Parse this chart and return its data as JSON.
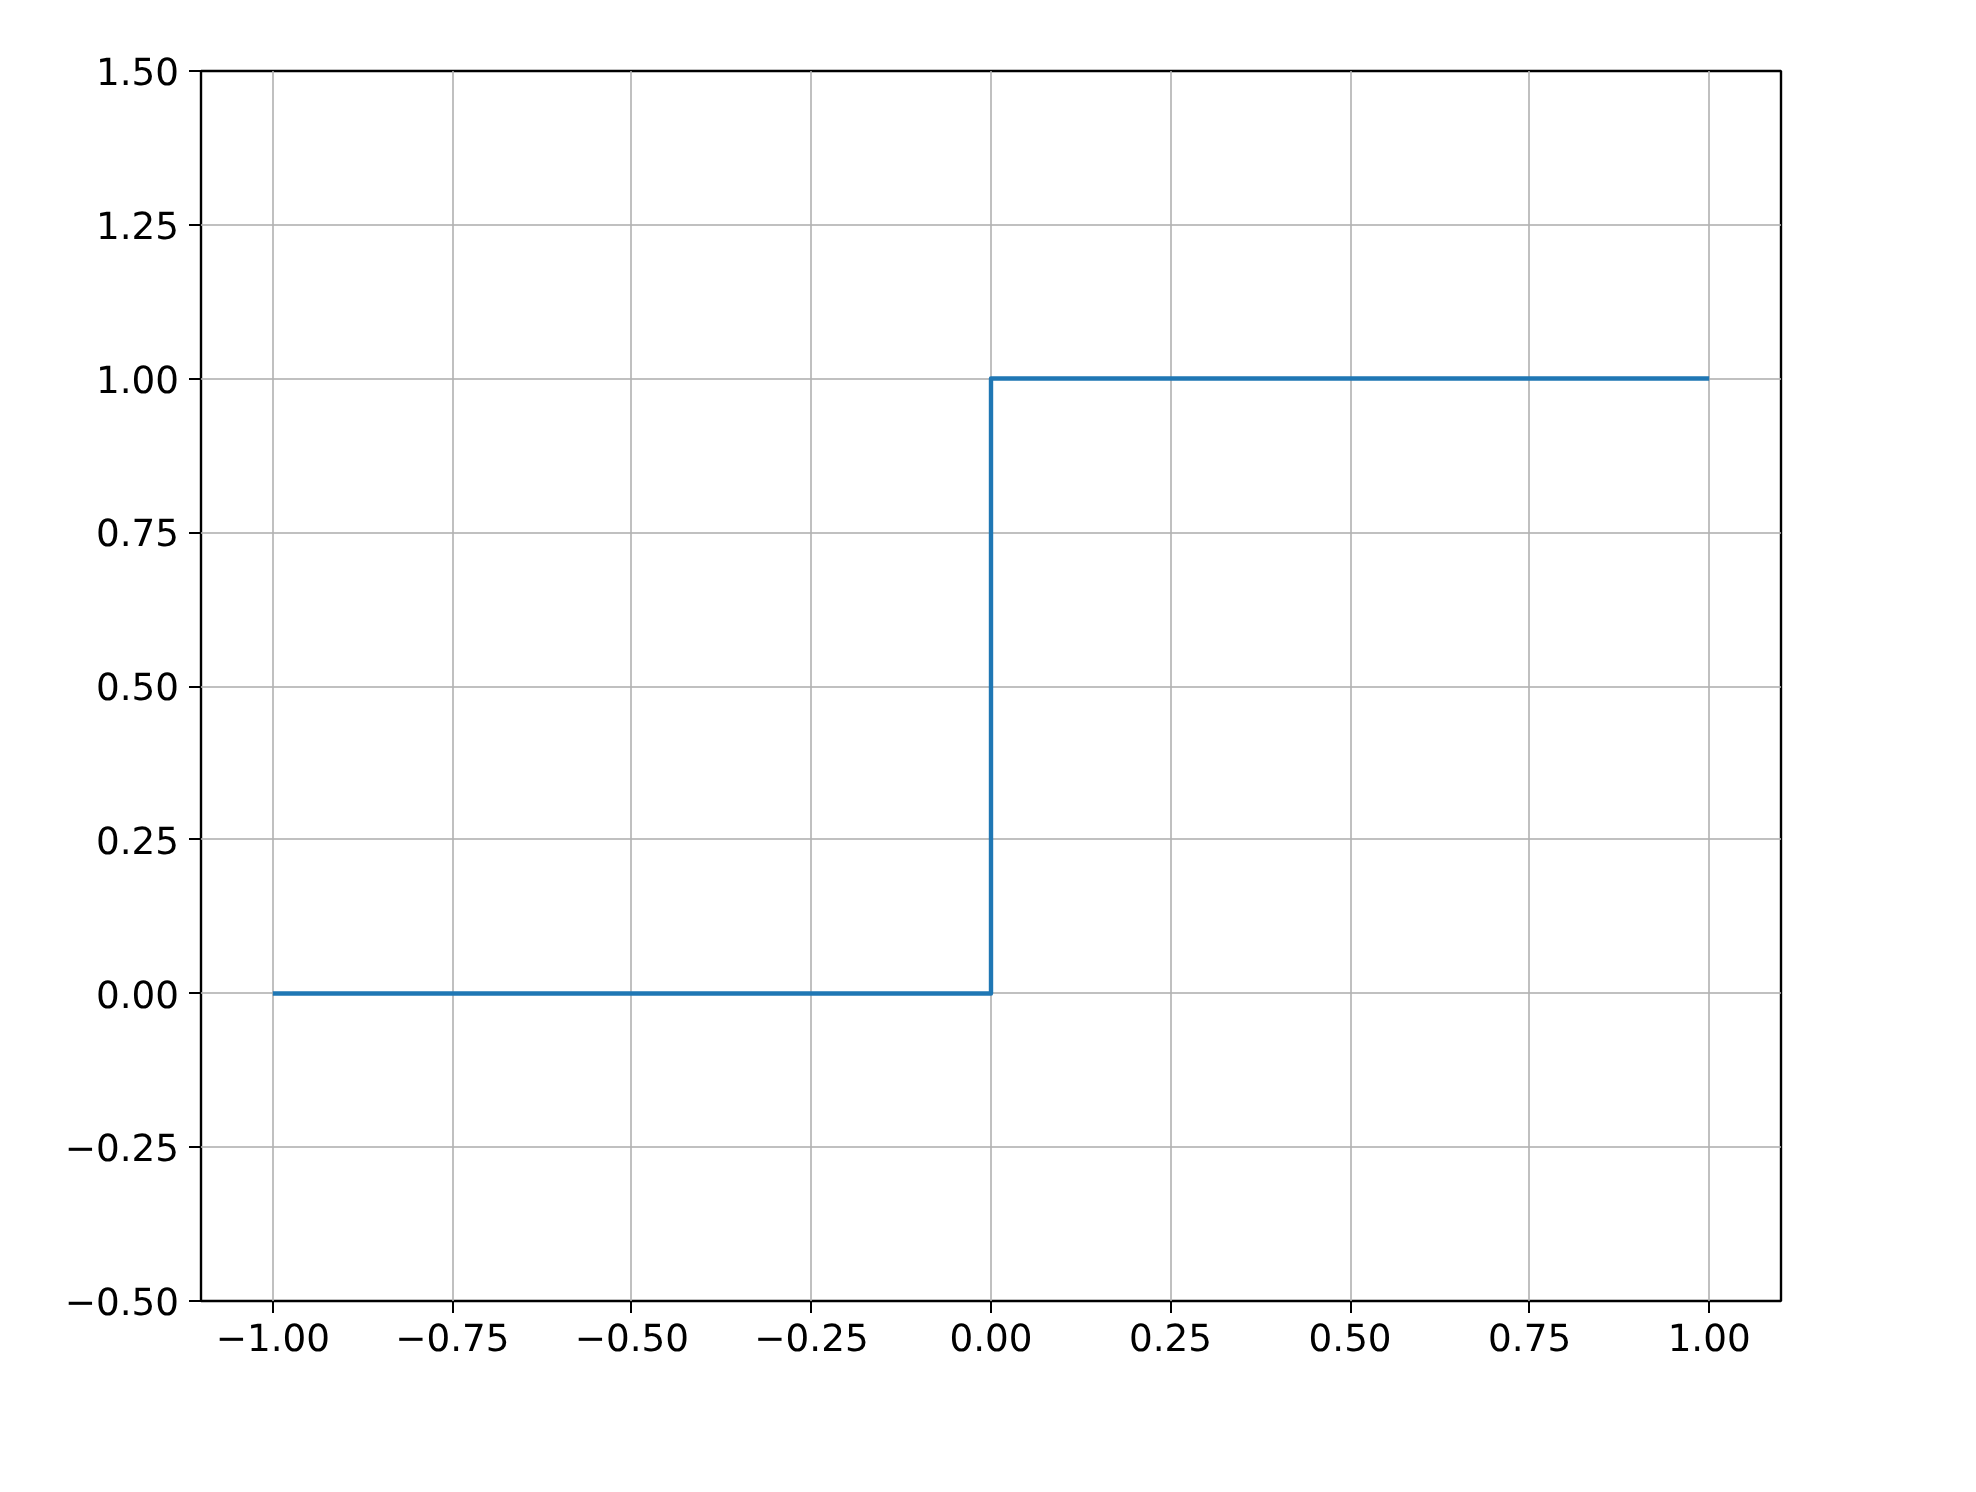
{
  "chart_data": {
    "type": "step",
    "x": [
      -1.0,
      0.0,
      1.0
    ],
    "series": [
      {
        "color": "#1f77b4",
        "values": [
          0,
          1,
          1
        ]
      }
    ],
    "xlim": [
      -1.1,
      1.1
    ],
    "ylim": [
      -0.5,
      1.5
    ],
    "xticks": [
      {
        "value": -1.0,
        "label": "−1.00"
      },
      {
        "value": -0.75,
        "label": "−0.75"
      },
      {
        "value": -0.5,
        "label": "−0.50"
      },
      {
        "value": -0.25,
        "label": "−0.25"
      },
      {
        "value": 0.0,
        "label": "0.00"
      },
      {
        "value": 0.25,
        "label": "0.25"
      },
      {
        "value": 0.5,
        "label": "0.50"
      },
      {
        "value": 0.75,
        "label": "0.75"
      },
      {
        "value": 1.0,
        "label": "1.00"
      }
    ],
    "yticks": [
      {
        "value": -0.5,
        "label": "−0.50"
      },
      {
        "value": -0.25,
        "label": "−0.25"
      },
      {
        "value": 0.0,
        "label": "0.00"
      },
      {
        "value": 0.25,
        "label": "0.25"
      },
      {
        "value": 0.5,
        "label": "0.50"
      },
      {
        "value": 0.75,
        "label": "0.75"
      },
      {
        "value": 1.0,
        "label": "1.00"
      },
      {
        "value": 1.25,
        "label": "1.25"
      },
      {
        "value": 1.5,
        "label": "1.50"
      }
    ],
    "grid": true,
    "line_style": "solid"
  }
}
